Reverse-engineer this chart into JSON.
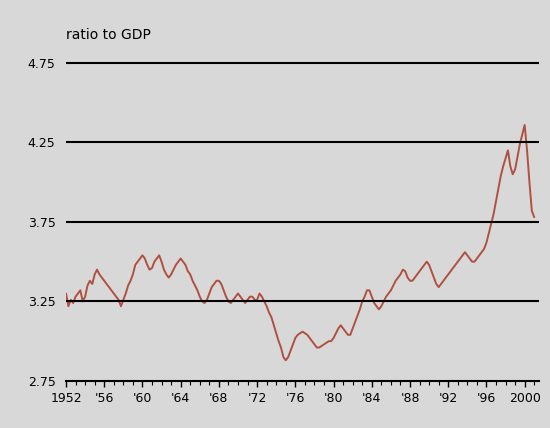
{
  "title": "ratio to GDP",
  "xlim": [
    1952,
    2001.5
  ],
  "ylim": [
    2.75,
    4.85
  ],
  "yticks": [
    2.75,
    3.25,
    3.75,
    4.25,
    4.75
  ],
  "xticks": [
    1952,
    1956,
    1960,
    1964,
    1968,
    1972,
    1976,
    1980,
    1984,
    1988,
    1992,
    1996,
    2000
  ],
  "xticklabels": [
    "1952",
    "'56",
    "'60",
    "'64",
    "'68",
    "'72",
    "'76",
    "'80",
    "'84",
    "'88",
    "'92",
    "'96",
    "2000"
  ],
  "hlines": [
    3.25,
    3.75,
    4.25,
    4.75
  ],
  "line_color": "#b05040",
  "bg_color": "#d8d8d8",
  "title_fontsize": 10,
  "tick_fontsize": 9,
  "series": [
    [
      1952.0,
      3.3
    ],
    [
      1952.25,
      3.22
    ],
    [
      1952.5,
      3.26
    ],
    [
      1952.75,
      3.24
    ],
    [
      1953.0,
      3.28
    ],
    [
      1953.25,
      3.3
    ],
    [
      1953.5,
      3.32
    ],
    [
      1953.75,
      3.25
    ],
    [
      1954.0,
      3.28
    ],
    [
      1954.25,
      3.35
    ],
    [
      1954.5,
      3.38
    ],
    [
      1954.75,
      3.36
    ],
    [
      1955.0,
      3.42
    ],
    [
      1955.25,
      3.45
    ],
    [
      1955.5,
      3.42
    ],
    [
      1955.75,
      3.4
    ],
    [
      1956.0,
      3.38
    ],
    [
      1956.25,
      3.36
    ],
    [
      1956.5,
      3.34
    ],
    [
      1956.75,
      3.32
    ],
    [
      1957.0,
      3.3
    ],
    [
      1957.25,
      3.28
    ],
    [
      1957.5,
      3.26
    ],
    [
      1957.75,
      3.22
    ],
    [
      1958.0,
      3.26
    ],
    [
      1958.25,
      3.3
    ],
    [
      1958.5,
      3.35
    ],
    [
      1958.75,
      3.38
    ],
    [
      1959.0,
      3.42
    ],
    [
      1959.25,
      3.48
    ],
    [
      1959.5,
      3.5
    ],
    [
      1959.75,
      3.52
    ],
    [
      1960.0,
      3.54
    ],
    [
      1960.25,
      3.52
    ],
    [
      1960.5,
      3.48
    ],
    [
      1960.75,
      3.45
    ],
    [
      1961.0,
      3.46
    ],
    [
      1961.25,
      3.5
    ],
    [
      1961.5,
      3.52
    ],
    [
      1961.75,
      3.54
    ],
    [
      1962.0,
      3.5
    ],
    [
      1962.25,
      3.45
    ],
    [
      1962.5,
      3.42
    ],
    [
      1962.75,
      3.4
    ],
    [
      1963.0,
      3.42
    ],
    [
      1963.25,
      3.45
    ],
    [
      1963.5,
      3.48
    ],
    [
      1963.75,
      3.5
    ],
    [
      1964.0,
      3.52
    ],
    [
      1964.25,
      3.5
    ],
    [
      1964.5,
      3.48
    ],
    [
      1964.75,
      3.44
    ],
    [
      1965.0,
      3.42
    ],
    [
      1965.25,
      3.38
    ],
    [
      1965.5,
      3.35
    ],
    [
      1965.75,
      3.32
    ],
    [
      1966.0,
      3.28
    ],
    [
      1966.25,
      3.25
    ],
    [
      1966.5,
      3.24
    ],
    [
      1966.75,
      3.26
    ],
    [
      1967.0,
      3.3
    ],
    [
      1967.25,
      3.34
    ],
    [
      1967.5,
      3.36
    ],
    [
      1967.75,
      3.38
    ],
    [
      1968.0,
      3.38
    ],
    [
      1968.25,
      3.36
    ],
    [
      1968.5,
      3.32
    ],
    [
      1968.75,
      3.28
    ],
    [
      1969.0,
      3.25
    ],
    [
      1969.25,
      3.24
    ],
    [
      1969.5,
      3.26
    ],
    [
      1969.75,
      3.28
    ],
    [
      1970.0,
      3.3
    ],
    [
      1970.25,
      3.28
    ],
    [
      1970.5,
      3.26
    ],
    [
      1970.75,
      3.24
    ],
    [
      1971.0,
      3.26
    ],
    [
      1971.25,
      3.28
    ],
    [
      1971.5,
      3.28
    ],
    [
      1971.75,
      3.26
    ],
    [
      1972.0,
      3.26
    ],
    [
      1972.25,
      3.3
    ],
    [
      1972.5,
      3.28
    ],
    [
      1972.75,
      3.25
    ],
    [
      1973.0,
      3.22
    ],
    [
      1973.25,
      3.18
    ],
    [
      1973.5,
      3.15
    ],
    [
      1973.75,
      3.1
    ],
    [
      1974.0,
      3.05
    ],
    [
      1974.25,
      3.0
    ],
    [
      1974.5,
      2.96
    ],
    [
      1974.75,
      2.9
    ],
    [
      1975.0,
      2.88
    ],
    [
      1975.25,
      2.9
    ],
    [
      1975.5,
      2.94
    ],
    [
      1975.75,
      2.98
    ],
    [
      1976.0,
      3.02
    ],
    [
      1976.25,
      3.04
    ],
    [
      1976.5,
      3.05
    ],
    [
      1976.75,
      3.06
    ],
    [
      1977.0,
      3.05
    ],
    [
      1977.25,
      3.04
    ],
    [
      1977.5,
      3.02
    ],
    [
      1977.75,
      3.0
    ],
    [
      1978.0,
      2.98
    ],
    [
      1978.25,
      2.96
    ],
    [
      1978.5,
      2.96
    ],
    [
      1978.75,
      2.97
    ],
    [
      1979.0,
      2.98
    ],
    [
      1979.25,
      2.99
    ],
    [
      1979.5,
      3.0
    ],
    [
      1979.75,
      3.0
    ],
    [
      1980.0,
      3.02
    ],
    [
      1980.25,
      3.05
    ],
    [
      1980.5,
      3.08
    ],
    [
      1980.75,
      3.1
    ],
    [
      1981.0,
      3.08
    ],
    [
      1981.25,
      3.06
    ],
    [
      1981.5,
      3.04
    ],
    [
      1981.75,
      3.04
    ],
    [
      1982.0,
      3.08
    ],
    [
      1982.25,
      3.12
    ],
    [
      1982.5,
      3.16
    ],
    [
      1982.75,
      3.2
    ],
    [
      1983.0,
      3.25
    ],
    [
      1983.25,
      3.28
    ],
    [
      1983.5,
      3.32
    ],
    [
      1983.75,
      3.32
    ],
    [
      1984.0,
      3.28
    ],
    [
      1984.25,
      3.24
    ],
    [
      1984.5,
      3.22
    ],
    [
      1984.75,
      3.2
    ],
    [
      1985.0,
      3.22
    ],
    [
      1985.25,
      3.25
    ],
    [
      1985.5,
      3.28
    ],
    [
      1985.75,
      3.3
    ],
    [
      1986.0,
      3.32
    ],
    [
      1986.25,
      3.35
    ],
    [
      1986.5,
      3.38
    ],
    [
      1986.75,
      3.4
    ],
    [
      1987.0,
      3.42
    ],
    [
      1987.25,
      3.45
    ],
    [
      1987.5,
      3.44
    ],
    [
      1987.75,
      3.4
    ],
    [
      1988.0,
      3.38
    ],
    [
      1988.25,
      3.38
    ],
    [
      1988.5,
      3.4
    ],
    [
      1988.75,
      3.42
    ],
    [
      1989.0,
      3.44
    ],
    [
      1989.25,
      3.46
    ],
    [
      1989.5,
      3.48
    ],
    [
      1989.75,
      3.5
    ],
    [
      1990.0,
      3.48
    ],
    [
      1990.25,
      3.44
    ],
    [
      1990.5,
      3.4
    ],
    [
      1990.75,
      3.36
    ],
    [
      1991.0,
      3.34
    ],
    [
      1991.25,
      3.36
    ],
    [
      1991.5,
      3.38
    ],
    [
      1991.75,
      3.4
    ],
    [
      1992.0,
      3.42
    ],
    [
      1992.25,
      3.44
    ],
    [
      1992.5,
      3.46
    ],
    [
      1992.75,
      3.48
    ],
    [
      1993.0,
      3.5
    ],
    [
      1993.25,
      3.52
    ],
    [
      1993.5,
      3.54
    ],
    [
      1993.75,
      3.56
    ],
    [
      1994.0,
      3.54
    ],
    [
      1994.25,
      3.52
    ],
    [
      1994.5,
      3.5
    ],
    [
      1994.75,
      3.5
    ],
    [
      1995.0,
      3.52
    ],
    [
      1995.25,
      3.54
    ],
    [
      1995.5,
      3.56
    ],
    [
      1995.75,
      3.58
    ],
    [
      1996.0,
      3.62
    ],
    [
      1996.25,
      3.68
    ],
    [
      1996.5,
      3.74
    ],
    [
      1996.75,
      3.8
    ],
    [
      1997.0,
      3.88
    ],
    [
      1997.25,
      3.96
    ],
    [
      1997.5,
      4.04
    ],
    [
      1997.75,
      4.1
    ],
    [
      1998.0,
      4.15
    ],
    [
      1998.25,
      4.2
    ],
    [
      1998.5,
      4.1
    ],
    [
      1998.75,
      4.05
    ],
    [
      1999.0,
      4.08
    ],
    [
      1999.25,
      4.16
    ],
    [
      1999.5,
      4.24
    ],
    [
      1999.75,
      4.3
    ],
    [
      2000.0,
      4.36
    ],
    [
      2000.25,
      4.2
    ],
    [
      2000.5,
      4.0
    ],
    [
      2000.75,
      3.82
    ],
    [
      2001.0,
      3.78
    ]
  ]
}
